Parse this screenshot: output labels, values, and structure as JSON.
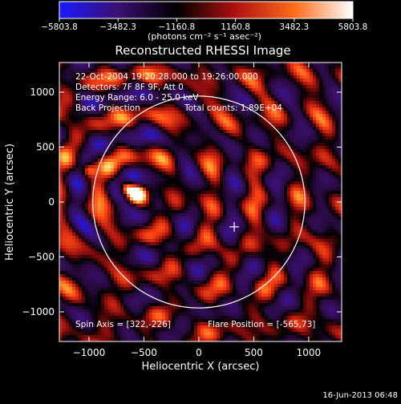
{
  "chart_data": {
    "type": "heatmap",
    "title": "Reconstructed RHESSI Image",
    "xlabel": "Heliocentric X (arcsec)",
    "ylabel": "Heliocentric Y (arcsec)",
    "xlim": [
      -1270,
      1300
    ],
    "ylim": [
      -1270,
      1270
    ],
    "x_ticks": [
      -1000,
      -500,
      0,
      500,
      1000
    ],
    "y_ticks": [
      1000,
      500,
      0,
      -500,
      -1000
    ],
    "colorbar": {
      "min": -5803.8,
      "max": 5803.8,
      "tick_values": [
        -5803.8,
        -3482.3,
        -1160.8,
        1160.8,
        3482.3,
        5803.8
      ],
      "tick_labels": [
        "−5803.8",
        "−3482.3",
        "−1160.8",
        "1160.8",
        "3482.3",
        "5803.8"
      ],
      "unit_label": "(photons cm⁻² s⁻¹ asec⁻²)",
      "colors": [
        "#1a1aff",
        "#3a1070",
        "#000000",
        "#b01010",
        "#ff6a1a",
        "#ffffff"
      ]
    },
    "annotations": {
      "line1": "22-Oct-2004 19:20:28.000 to 19:26:00.000",
      "line2": "Detectors: 7F 8F 9F, Att 0",
      "line3": "Energy Range: 6.0 - 25.0 keV",
      "line4": "Back Projection",
      "line5": "Total counts: 1.89E+04",
      "spin_axis": "Spin Axis = [322,-226]",
      "flare_position": "Flare Position = [-565,73]"
    },
    "solar_limb": {
      "center": [
        0,
        0
      ],
      "radius": 965
    },
    "spin_axis_marker": [
      322,
      -226
    ],
    "bright_sources": [
      {
        "x": -565,
        "y": 73,
        "peak": 5803.8
      },
      {
        "x": -660,
        "y": 130,
        "peak": 4600
      },
      {
        "x": -1000,
        "y": 290,
        "peak": 3900
      }
    ],
    "grid": false
  },
  "footer": {
    "timestamp": "16-Jun-2013 06:48"
  }
}
